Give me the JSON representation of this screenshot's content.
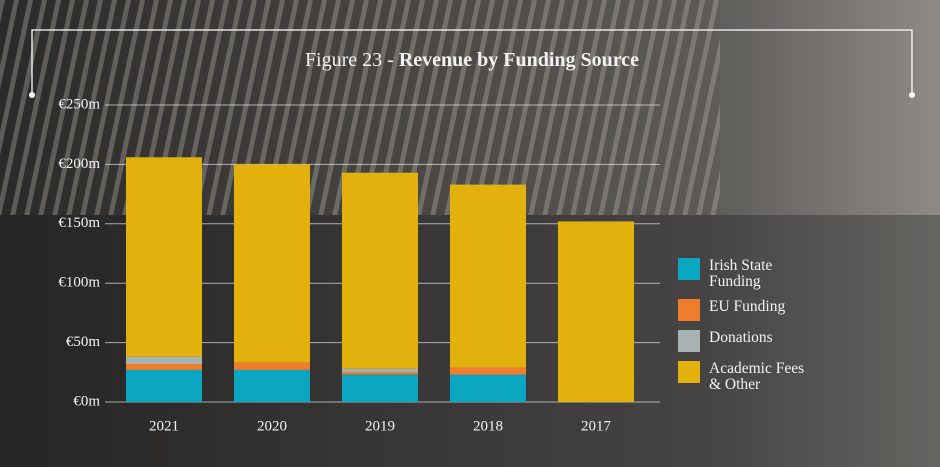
{
  "chart_data": {
    "type": "stacked_bar",
    "title": [
      "Figure 23 - ",
      "Revenue by Funding Source"
    ],
    "categories": [
      "2021",
      "2020",
      "2019",
      "2018",
      "2017"
    ],
    "series": [
      {
        "name": "Irish State Funding",
        "color": "#0aa5c1",
        "values": [
          27,
          27,
          23,
          23,
          0
        ]
      },
      {
        "name": "EU Funding",
        "color": "#f07d2e",
        "values": [
          5,
          6,
          2,
          6,
          0
        ]
      },
      {
        "name": "Donations",
        "color": "#a7b2b3",
        "values": [
          6,
          0,
          3,
          0,
          0
        ]
      },
      {
        "name": "Academic Fees & Other",
        "color": "#e2b10d",
        "values": [
          168,
          167,
          165,
          154,
          152
        ]
      }
    ],
    "ylim": [
      0,
      250
    ],
    "yticks": [
      {
        "value": 0,
        "label": "€0m"
      },
      {
        "value": 50,
        "label": "€50m"
      },
      {
        "value": 100,
        "label": "€100m"
      },
      {
        "value": 150,
        "label": "€150m"
      },
      {
        "value": 200,
        "label": "€200m"
      },
      {
        "value": 250,
        "label": "€250m"
      }
    ],
    "grid": true,
    "legend": "right"
  }
}
